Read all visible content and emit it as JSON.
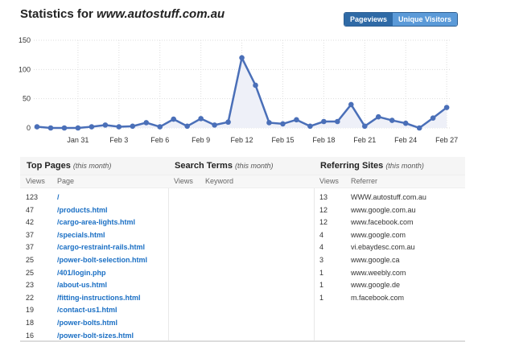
{
  "header": {
    "title_prefix": "Statistics for ",
    "site": "www.autostuff.com.au",
    "toggle": [
      "Pageviews",
      "Unique Visitors"
    ]
  },
  "chart_data": {
    "type": "area",
    "title": "Pageviews",
    "x": [
      "Jan 28",
      "Jan 29",
      "Jan 30",
      "Jan 31",
      "Feb 1",
      "Feb 2",
      "Feb 3",
      "Feb 4",
      "Feb 5",
      "Feb 6",
      "Feb 7",
      "Feb 8",
      "Feb 9",
      "Feb 10",
      "Feb 11",
      "Feb 12",
      "Feb 13",
      "Feb 14",
      "Feb 15",
      "Feb 16",
      "Feb 17",
      "Feb 18",
      "Feb 19",
      "Feb 20",
      "Feb 21",
      "Feb 22",
      "Feb 23",
      "Feb 24",
      "Feb 25",
      "Feb 26",
      "Feb 27"
    ],
    "values": [
      2,
      0,
      0,
      0,
      2,
      5,
      2,
      3,
      9,
      2,
      15,
      3,
      16,
      5,
      10,
      120,
      73,
      9,
      7,
      14,
      3,
      11,
      11,
      40,
      3,
      19,
      13,
      8,
      0,
      17,
      35
    ],
    "xticks": [
      "Jan 31",
      "Feb 3",
      "Feb 6",
      "Feb 9",
      "Feb 12",
      "Feb 15",
      "Feb 18",
      "Feb 21",
      "Feb 24",
      "Feb 27"
    ],
    "yticks": [
      "0",
      "50",
      "100",
      "150"
    ],
    "ylim": [
      0,
      150
    ],
    "color": "#4a6fb8",
    "grid": true
  },
  "top_pages": {
    "title": "Top Pages",
    "sub": "(this month)",
    "cols": [
      "Views",
      "Page"
    ],
    "rows": [
      [
        "123",
        "/"
      ],
      [
        "47",
        "/products.html"
      ],
      [
        "42",
        "/cargo-area-lights.html"
      ],
      [
        "37",
        "/specials.html"
      ],
      [
        "37",
        "/cargo-restraint-rails.html"
      ],
      [
        "25",
        "/power-bolt-selection.html"
      ],
      [
        "25",
        "/401/login.php"
      ],
      [
        "23",
        "/about-us.html"
      ],
      [
        "22",
        "/fitting-instructions.html"
      ],
      [
        "19",
        "/contact-us1.html"
      ],
      [
        "18",
        "/power-bolts.html"
      ],
      [
        "16",
        "/power-bolt-sizes.html"
      ]
    ]
  },
  "search_terms": {
    "title": "Search Terms",
    "sub": "(this month)",
    "cols": [
      "Views",
      "Keyword"
    ]
  },
  "referrers": {
    "title": "Referring Sites",
    "sub": "(this month)",
    "cols": [
      "Views",
      "Referrer"
    ],
    "rows": [
      [
        "13",
        "WWW.autostuff.com.au"
      ],
      [
        "12",
        "www.google.com.au"
      ],
      [
        "12",
        "www.facebook.com"
      ],
      [
        "4",
        "www.google.com"
      ],
      [
        "4",
        "vi.ebaydesc.com.au"
      ],
      [
        "3",
        "www.google.ca"
      ],
      [
        "1",
        "www.weebly.com"
      ],
      [
        "1",
        "www.google.de"
      ],
      [
        "1",
        "m.facebook.com"
      ]
    ]
  }
}
